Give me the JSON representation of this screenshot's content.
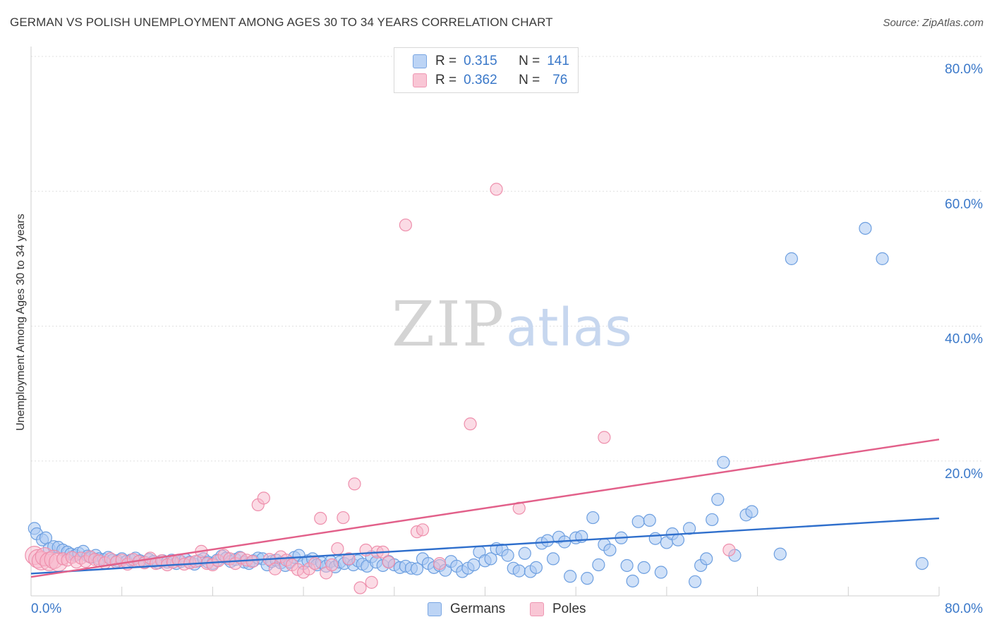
{
  "header": {
    "title": "GERMAN VS POLISH UNEMPLOYMENT AMONG AGES 30 TO 34 YEARS CORRELATION CHART",
    "source": "Source: ZipAtlas.com"
  },
  "watermark": {
    "zip": "ZIP",
    "atlas": "atlas"
  },
  "legend": {
    "rows": [
      {
        "r_label": "R =",
        "r_value": "0.315",
        "n_label": "N =",
        "n_value": "141"
      },
      {
        "r_label": "R =",
        "r_value": "0.362",
        "n_label": "N =",
        "n_value": "76"
      }
    ]
  },
  "bottom_legend": {
    "germans": "Germans",
    "poles": "Poles"
  },
  "colors": {
    "germans_fill": "#a9c8f2",
    "germans_stroke": "#6d9fe0",
    "germans_line": "#2f6fcc",
    "poles_fill": "#f7b8cb",
    "poles_stroke": "#ee8fac",
    "poles_line": "#e2608a",
    "axis_text": "#3a78c9",
    "grid": "#e0e0e0"
  },
  "chart_data": {
    "type": "scatter",
    "title": "GERMAN VS POLISH UNEMPLOYMENT AMONG AGES 30 TO 34 YEARS CORRELATION CHART",
    "xlabel": "",
    "ylabel": "Unemployment Among Ages 30 to 34 years",
    "xlim": [
      0,
      80
    ],
    "ylim": [
      0,
      80
    ],
    "x_tick_labels": [
      "0.0%",
      "80.0%"
    ],
    "y_tick_labels": [
      "20.0%",
      "40.0%",
      "60.0%",
      "80.0%"
    ],
    "y_ticks": [
      20,
      40,
      60,
      80
    ],
    "grid": true,
    "legend_position": "top-center",
    "series": [
      {
        "name": "Germans",
        "r": 0.315,
        "n": 141,
        "trend": {
          "x0": 0,
          "y0": 3.3,
          "x1": 80,
          "y1": 11.5
        },
        "points": [
          [
            0.3,
            10
          ],
          [
            0.5,
            9.2
          ],
          [
            1,
            8.3
          ],
          [
            1.3,
            8.6
          ],
          [
            1.6,
            7
          ],
          [
            2,
            7.3
          ],
          [
            2.4,
            7.2
          ],
          [
            2.8,
            6.8
          ],
          [
            3.2,
            6.5
          ],
          [
            3.5,
            6.2
          ],
          [
            3.9,
            6
          ],
          [
            4.2,
            6.3
          ],
          [
            4.6,
            6.6
          ],
          [
            5,
            5.9
          ],
          [
            5.3,
            5.7
          ],
          [
            5.7,
            6
          ],
          [
            6,
            5.5
          ],
          [
            6.4,
            5.4
          ],
          [
            6.8,
            5.7
          ],
          [
            7.2,
            5.3
          ],
          [
            7.6,
            5.2
          ],
          [
            8,
            5.5
          ],
          [
            8.4,
            5.1
          ],
          [
            8.8,
            5.3
          ],
          [
            9.2,
            5.6
          ],
          [
            9.6,
            5.2
          ],
          [
            10,
            5
          ],
          [
            10.4,
            5.4
          ],
          [
            10.8,
            5.1
          ],
          [
            11.2,
            4.9
          ],
          [
            11.6,
            5.2
          ],
          [
            12,
            5
          ],
          [
            12.4,
            5.3
          ],
          [
            12.8,
            4.8
          ],
          [
            13.2,
            5.1
          ],
          [
            13.6,
            5.4
          ],
          [
            14,
            5
          ],
          [
            14.4,
            4.7
          ],
          [
            14.8,
            5.2
          ],
          [
            15.2,
            5.5
          ],
          [
            15.6,
            5
          ],
          [
            16,
            4.8
          ],
          [
            16.4,
            5.3
          ],
          [
            16.8,
            5.9
          ],
          [
            17.2,
            5.6
          ],
          [
            17.6,
            5.1
          ],
          [
            18,
            5.4
          ],
          [
            18.4,
            5.7
          ],
          [
            18.8,
            5
          ],
          [
            19.2,
            4.8
          ],
          [
            19.6,
            5.2
          ],
          [
            20,
            5.6
          ],
          [
            20.4,
            5.5
          ],
          [
            20.8,
            4.6
          ],
          [
            21.2,
            5.1
          ],
          [
            21.6,
            5.3
          ],
          [
            22,
            4.9
          ],
          [
            22.4,
            4.5
          ],
          [
            22.8,
            5
          ],
          [
            23.2,
            5.7
          ],
          [
            23.6,
            6
          ],
          [
            24,
            4.8
          ],
          [
            24.4,
            5.2
          ],
          [
            24.8,
            5.5
          ],
          [
            25.2,
            4.6
          ],
          [
            25.6,
            4.9
          ],
          [
            26,
            4.4
          ],
          [
            26.4,
            5.1
          ],
          [
            26.8,
            4.3
          ],
          [
            27.2,
            5
          ],
          [
            27.6,
            4.8
          ],
          [
            28,
            5.4
          ],
          [
            28.4,
            4.6
          ],
          [
            28.8,
            5.2
          ],
          [
            29.2,
            4.7
          ],
          [
            29.6,
            4.4
          ],
          [
            30,
            5.8
          ],
          [
            30.4,
            5
          ],
          [
            31,
            4.5
          ],
          [
            31.5,
            5.1
          ],
          [
            32,
            4.6
          ],
          [
            32.5,
            4.2
          ],
          [
            33,
            4.4
          ],
          [
            33.5,
            4.1
          ],
          [
            34,
            4
          ],
          [
            34.5,
            5.5
          ],
          [
            35,
            4.8
          ],
          [
            35.5,
            4.2
          ],
          [
            36,
            4.5
          ],
          [
            36.5,
            3.8
          ],
          [
            37,
            5.1
          ],
          [
            37.5,
            4.4
          ],
          [
            38,
            3.6
          ],
          [
            38.5,
            4.1
          ],
          [
            39,
            4.6
          ],
          [
            39.5,
            6.5
          ],
          [
            40,
            5.2
          ],
          [
            40.5,
            5.5
          ],
          [
            41,
            7
          ],
          [
            41.5,
            6.8
          ],
          [
            42,
            6
          ],
          [
            42.5,
            4.1
          ],
          [
            43,
            3.7
          ],
          [
            43.5,
            6.3
          ],
          [
            44,
            3.6
          ],
          [
            44.5,
            4.2
          ],
          [
            45,
            7.8
          ],
          [
            45.5,
            8.2
          ],
          [
            46,
            5.5
          ],
          [
            46.5,
            8.7
          ],
          [
            47,
            8
          ],
          [
            47.5,
            2.9
          ],
          [
            48,
            8.6
          ],
          [
            48.5,
            8.8
          ],
          [
            49,
            2.6
          ],
          [
            49.5,
            11.6
          ],
          [
            50,
            4.6
          ],
          [
            50.5,
            7.6
          ],
          [
            51,
            6.8
          ],
          [
            52,
            8.6
          ],
          [
            52.5,
            4.5
          ],
          [
            53,
            2.2
          ],
          [
            53.5,
            11
          ],
          [
            54,
            4.2
          ],
          [
            54.5,
            11.2
          ],
          [
            55,
            8.5
          ],
          [
            55.5,
            3.5
          ],
          [
            56,
            7.9
          ],
          [
            56.5,
            9.2
          ],
          [
            57,
            8.3
          ],
          [
            58,
            10
          ],
          [
            58.5,
            2.1
          ],
          [
            59,
            4.5
          ],
          [
            59.5,
            5.5
          ],
          [
            60,
            11.3
          ],
          [
            60.5,
            14.3
          ],
          [
            61,
            19.8
          ],
          [
            62,
            6
          ],
          [
            63,
            12
          ],
          [
            63.5,
            12.5
          ],
          [
            66,
            6.2
          ],
          [
            67,
            50
          ],
          [
            73.5,
            54.5
          ],
          [
            75,
            50
          ],
          [
            78.5,
            4.8
          ]
        ]
      },
      {
        "name": "Poles",
        "r": 0.362,
        "n": 76,
        "trend": {
          "x0": 0,
          "y0": 2.8,
          "x1": 80,
          "y1": 23.2
        },
        "points": [
          [
            0.3,
            6
          ],
          [
            0.6,
            5.5
          ],
          [
            0.9,
            5.2
          ],
          [
            1.2,
            5.8
          ],
          [
            1.6,
            5.1
          ],
          [
            2,
            5.4
          ],
          [
            2.4,
            5
          ],
          [
            2.8,
            5.5
          ],
          [
            3.2,
            5.3
          ],
          [
            3.6,
            5.7
          ],
          [
            4,
            5
          ],
          [
            4.4,
            5.6
          ],
          [
            4.8,
            5.1
          ],
          [
            5.2,
            5.8
          ],
          [
            5.6,
            5.4
          ],
          [
            6,
            5.2
          ],
          [
            6.5,
            4.9
          ],
          [
            7,
            5.5
          ],
          [
            7.5,
            5
          ],
          [
            8,
            5.3
          ],
          [
            8.5,
            4.7
          ],
          [
            9,
            5.4
          ],
          [
            9.5,
            5.1
          ],
          [
            10,
            4.9
          ],
          [
            10.5,
            5.6
          ],
          [
            11,
            4.8
          ],
          [
            11.5,
            5.2
          ],
          [
            12,
            4.6
          ],
          [
            12.5,
            5
          ],
          [
            13,
            5.3
          ],
          [
            13.5,
            4.7
          ],
          [
            14,
            4.9
          ],
          [
            14.5,
            5.1
          ],
          [
            15,
            6.6
          ],
          [
            15.5,
            4.8
          ],
          [
            16,
            4.6
          ],
          [
            16.5,
            5.2
          ],
          [
            17,
            6
          ],
          [
            17.5,
            5.5
          ],
          [
            18,
            4.8
          ],
          [
            18.5,
            5.6
          ],
          [
            19,
            5.3
          ],
          [
            19.5,
            5.1
          ],
          [
            20,
            13.5
          ],
          [
            20.5,
            14.5
          ],
          [
            21,
            5.4
          ],
          [
            21.5,
            4
          ],
          [
            22,
            5.8
          ],
          [
            22.5,
            5.3
          ],
          [
            23,
            4.6
          ],
          [
            23.5,
            3.9
          ],
          [
            24,
            3.5
          ],
          [
            24.5,
            4
          ],
          [
            25,
            4.8
          ],
          [
            25.5,
            11.5
          ],
          [
            26,
            3.4
          ],
          [
            26.5,
            4.6
          ],
          [
            27,
            7
          ],
          [
            27.5,
            11.6
          ],
          [
            28,
            5.5
          ],
          [
            28.5,
            16.6
          ],
          [
            29,
            1.2
          ],
          [
            29.5,
            6.8
          ],
          [
            30,
            2
          ],
          [
            30.5,
            6.5
          ],
          [
            31,
            6.5
          ],
          [
            31.5,
            5
          ],
          [
            33,
            55
          ],
          [
            34,
            9.5
          ],
          [
            34.5,
            9.8
          ],
          [
            36,
            4.8
          ],
          [
            38.7,
            25.5
          ],
          [
            41,
            60.3
          ],
          [
            43,
            13
          ],
          [
            50.5,
            23.5
          ],
          [
            61.5,
            6.8
          ]
        ]
      }
    ]
  }
}
